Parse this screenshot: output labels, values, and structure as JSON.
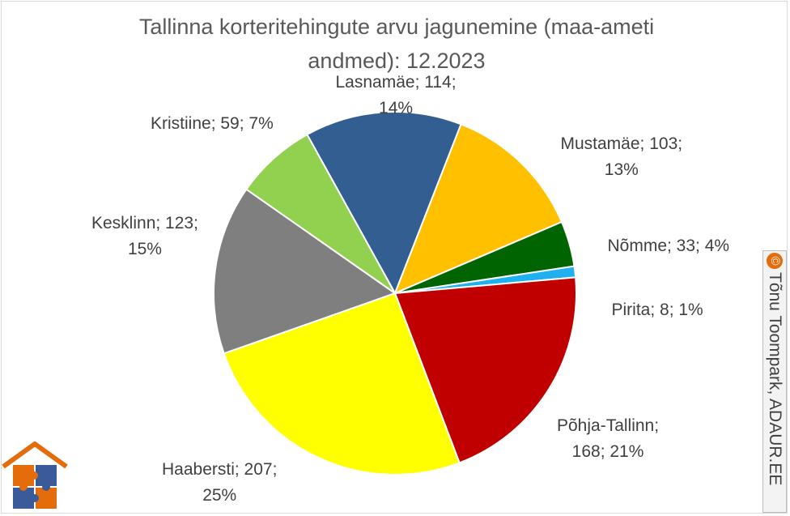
{
  "chart_data": {
    "type": "pie",
    "title": "Tallinna korteritehingute arvu jagunemine (maa-ameti andmed): 12.2023",
    "title_lines": [
      "Tallinna korteritehingute arvu jagunemine (maa-ameti",
      "andmed): 12.2023"
    ],
    "slices": [
      {
        "name": "Lasnamäe",
        "value": 114,
        "percent": "14%",
        "color": "#335e91",
        "label_lines": [
          "Lasnamäe; 114;",
          "14%"
        ]
      },
      {
        "name": "Mustamäe",
        "value": 103,
        "percent": "13%",
        "color": "#ffc000",
        "label_lines": [
          "Mustamäe; 103;",
          "13%"
        ]
      },
      {
        "name": "Nõmme",
        "value": 33,
        "percent": "4%",
        "color": "#006400",
        "label_lines": [
          "Nõmme; 33; 4%"
        ]
      },
      {
        "name": "Pirita",
        "value": 8,
        "percent": "1%",
        "color": "#1fb0f0",
        "label_lines": [
          "Pirita; 8; 1%"
        ]
      },
      {
        "name": "Põhja-Tallinn",
        "value": 168,
        "percent": "21%",
        "color": "#c00000",
        "label_lines": [
          "Põhja-Tallinn;",
          "168; 21%"
        ]
      },
      {
        "name": "Haabersti",
        "value": 207,
        "percent": "25%",
        "color": "#ffff00",
        "label_lines": [
          "Haabersti; 207;",
          "25%"
        ]
      },
      {
        "name": "Kesklinn",
        "value": 123,
        "percent": "15%",
        "color": "#7f7f7f",
        "label_lines": [
          "Kesklinn; 123;",
          "15%"
        ]
      },
      {
        "name": "Kristiine",
        "value": 59,
        "percent": "7%",
        "color": "#92d050",
        "label_lines": [
          "Kristiine; 59; 7%"
        ]
      }
    ],
    "legend": "none"
  },
  "credit": {
    "symbol": "©",
    "text": "Tõnu Toompark, ADAUR.EE"
  },
  "logo": {
    "icon": "house-puzzle-logo"
  }
}
